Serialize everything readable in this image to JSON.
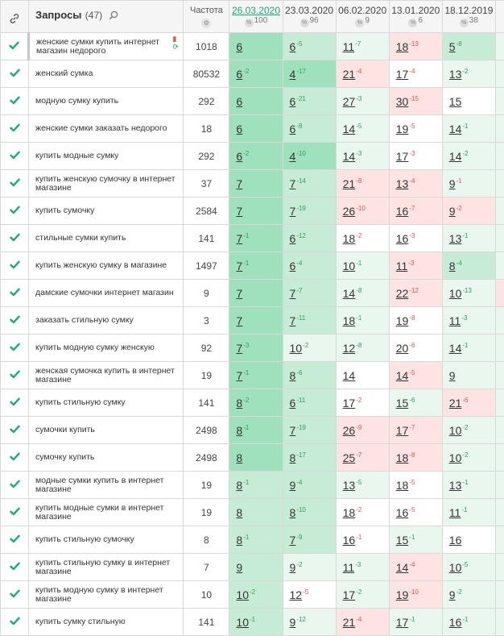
{
  "header": {
    "query_title": "Запросы",
    "query_count": "(47)",
    "freq_label": "Частота",
    "dates": [
      {
        "label": "26.03.2020",
        "visibility": "100",
        "active": true
      },
      {
        "label": "23.03.2020",
        "visibility": "96",
        "active": false
      },
      {
        "label": "06.02.2020",
        "visibility": "9",
        "active": false
      },
      {
        "label": "13.01.2020",
        "visibility": "6",
        "active": false
      },
      {
        "label": "18.12.2019",
        "visibility": "38",
        "active": false
      }
    ]
  },
  "colors": {
    "check": "#19a974",
    "top_green": "#9fe0bd",
    "mid_green": "#c6ecd5",
    "light_green": "#e9f7ee",
    "red_bg": "#fde3e1"
  },
  "icons": {
    "link": "link-icon",
    "search": "search-icon",
    "check": "check-icon",
    "trash": "trash-icon",
    "refresh": "refresh-icon"
  },
  "rows": [
    {
      "query": "женские сумки купить интернет магазин недорого",
      "freq": "1018",
      "marked": true,
      "actions": true,
      "edge": "g",
      "cells": [
        {
          "v": "6",
          "d": "",
          "bg": "g3"
        },
        {
          "v": "6",
          "d": "-5",
          "s": "up",
          "bg": "g2"
        },
        {
          "v": "11",
          "d": "-7",
          "s": "up",
          "bg": "g1"
        },
        {
          "v": "18",
          "d": "-13",
          "s": "dn",
          "bg": "r1"
        },
        {
          "v": "5",
          "d": "-8",
          "s": "up",
          "bg": "g2"
        }
      ]
    },
    {
      "query": "женский сумка",
      "freq": "80532",
      "edge": "g",
      "cells": [
        {
          "v": "6",
          "d": "-2",
          "s": "up",
          "bg": "g3"
        },
        {
          "v": "4",
          "d": "-17",
          "s": "up",
          "bg": "g3"
        },
        {
          "v": "21",
          "d": "-4",
          "s": "dn",
          "bg": "r1"
        },
        {
          "v": "17",
          "d": "-4",
          "s": "dn",
          "bg": "w"
        },
        {
          "v": "13",
          "d": "-2",
          "s": "up",
          "bg": "g1"
        }
      ]
    },
    {
      "query": "модную сумку купить",
      "freq": "292",
      "edge": "g",
      "cells": [
        {
          "v": "6",
          "d": "",
          "bg": "g3"
        },
        {
          "v": "6",
          "d": "-21",
          "s": "up",
          "bg": "g2"
        },
        {
          "v": "27",
          "d": "-3",
          "s": "up",
          "bg": "g1"
        },
        {
          "v": "30",
          "d": "-15",
          "s": "dn",
          "bg": "r1"
        },
        {
          "v": "15",
          "d": "",
          "bg": "w"
        }
      ]
    },
    {
      "query": "женские сумки заказать недорого",
      "freq": "18",
      "edge": "g",
      "cells": [
        {
          "v": "6",
          "d": "",
          "bg": "g3"
        },
        {
          "v": "6",
          "d": "-8",
          "s": "up",
          "bg": "g2"
        },
        {
          "v": "14",
          "d": "-5",
          "s": "up",
          "bg": "g1"
        },
        {
          "v": "19",
          "d": "-5",
          "s": "dn",
          "bg": "w"
        },
        {
          "v": "14",
          "d": "-1",
          "s": "up",
          "bg": "g1"
        }
      ]
    },
    {
      "query": "купить модные сумку",
      "freq": "292",
      "edge": "g",
      "cells": [
        {
          "v": "6",
          "d": "-2",
          "s": "up",
          "bg": "g3"
        },
        {
          "v": "4",
          "d": "-10",
          "s": "up",
          "bg": "g3"
        },
        {
          "v": "14",
          "d": "-3",
          "s": "up",
          "bg": "g1"
        },
        {
          "v": "17",
          "d": "-3",
          "s": "dn",
          "bg": "w"
        },
        {
          "v": "14",
          "d": "-2",
          "s": "up",
          "bg": "g1"
        }
      ]
    },
    {
      "query": "купить женскую сумочку в интернет магазине",
      "freq": "37",
      "edge": "g",
      "cells": [
        {
          "v": "7",
          "d": "",
          "bg": "g3"
        },
        {
          "v": "7",
          "d": "-14",
          "s": "up",
          "bg": "g2"
        },
        {
          "v": "21",
          "d": "-8",
          "s": "dn",
          "bg": "r1"
        },
        {
          "v": "13",
          "d": "-4",
          "s": "dn",
          "bg": "r1"
        },
        {
          "v": "9",
          "d": "-1",
          "s": "dn",
          "bg": "g1"
        }
      ]
    },
    {
      "query": "купить сумочку",
      "freq": "2584",
      "edge": "g",
      "cells": [
        {
          "v": "7",
          "d": "",
          "bg": "g3"
        },
        {
          "v": "7",
          "d": "-19",
          "s": "up",
          "bg": "g2"
        },
        {
          "v": "26",
          "d": "-10",
          "s": "dn",
          "bg": "r1"
        },
        {
          "v": "16",
          "d": "-7",
          "s": "dn",
          "bg": "r1"
        },
        {
          "v": "9",
          "d": "-2",
          "s": "dn",
          "bg": "r1"
        }
      ]
    },
    {
      "query": "стильные сумки купить",
      "freq": "141",
      "edge": "g",
      "cells": [
        {
          "v": "7",
          "d": "-1",
          "s": "up",
          "bg": "g3"
        },
        {
          "v": "6",
          "d": "-12",
          "s": "up",
          "bg": "g2"
        },
        {
          "v": "18",
          "d": "-2",
          "s": "dn",
          "bg": "w"
        },
        {
          "v": "16",
          "d": "-3",
          "s": "dn",
          "bg": "w"
        },
        {
          "v": "13",
          "d": "-1",
          "s": "up",
          "bg": "g1"
        }
      ]
    },
    {
      "query": "купить женскую сумку в магазине",
      "freq": "1497",
      "edge": "g",
      "cells": [
        {
          "v": "7",
          "d": "-1",
          "s": "up",
          "bg": "g3"
        },
        {
          "v": "6",
          "d": "-4",
          "s": "up",
          "bg": "g2"
        },
        {
          "v": "10",
          "d": "-1",
          "s": "up",
          "bg": "g1"
        },
        {
          "v": "11",
          "d": "-3",
          "s": "dn",
          "bg": "r1"
        },
        {
          "v": "8",
          "d": "-4",
          "s": "up",
          "bg": "g2"
        }
      ]
    },
    {
      "query": "дамские сумочки интернет магазин",
      "freq": "9",
      "edge": "r",
      "cells": [
        {
          "v": "7",
          "d": "",
          "bg": "g3"
        },
        {
          "v": "7",
          "d": "-7",
          "s": "up",
          "bg": "g2"
        },
        {
          "v": "14",
          "d": "-8",
          "s": "up",
          "bg": "g1"
        },
        {
          "v": "22",
          "d": "-12",
          "s": "dn",
          "bg": "r1"
        },
        {
          "v": "10",
          "d": "-13",
          "s": "up",
          "bg": "g1"
        }
      ]
    },
    {
      "query": "заказать стильную сумку",
      "freq": "3",
      "edge": "g",
      "cells": [
        {
          "v": "7",
          "d": "",
          "bg": "g3"
        },
        {
          "v": "7",
          "d": "-11",
          "s": "up",
          "bg": "g2"
        },
        {
          "v": "18",
          "d": "-1",
          "s": "up",
          "bg": "g1"
        },
        {
          "v": "19",
          "d": "-8",
          "s": "dn",
          "bg": "w"
        },
        {
          "v": "11",
          "d": "-3",
          "s": "up",
          "bg": "g1"
        }
      ]
    },
    {
      "query": "купить модную сумку женскую",
      "freq": "92",
      "edge": "g",
      "cells": [
        {
          "v": "7",
          "d": "-3",
          "s": "up",
          "bg": "g3"
        },
        {
          "v": "10",
          "d": "-2",
          "s": "up",
          "bg": "g1"
        },
        {
          "v": "12",
          "d": "-8",
          "s": "up",
          "bg": "g1"
        },
        {
          "v": "20",
          "d": "-6",
          "s": "dn",
          "bg": "w"
        },
        {
          "v": "14",
          "d": "-1",
          "s": "up",
          "bg": "g1"
        }
      ]
    },
    {
      "query": "женская сумочка купить в интернет магазине",
      "freq": "19",
      "edge": "g",
      "cells": [
        {
          "v": "7",
          "d": "-1",
          "s": "up",
          "bg": "g3"
        },
        {
          "v": "8",
          "d": "-6",
          "s": "up",
          "bg": "g2"
        },
        {
          "v": "14",
          "d": "",
          "bg": "w"
        },
        {
          "v": "14",
          "d": "-5",
          "s": "dn",
          "bg": "r1"
        },
        {
          "v": "9",
          "d": "",
          "bg": "g1"
        }
      ]
    },
    {
      "query": "купить стильную сумку",
      "freq": "141",
      "edge": "g",
      "cells": [
        {
          "v": "8",
          "d": "-2",
          "s": "up",
          "bg": "g3"
        },
        {
          "v": "6",
          "d": "-11",
          "s": "up",
          "bg": "g2"
        },
        {
          "v": "17",
          "d": "-2",
          "s": "dn",
          "bg": "w"
        },
        {
          "v": "15",
          "d": "-6",
          "s": "up",
          "bg": "g1"
        },
        {
          "v": "21",
          "d": "-6",
          "s": "dn",
          "bg": "r1"
        }
      ]
    },
    {
      "query": "сумочки купить",
      "freq": "2498",
      "edge": "g",
      "cells": [
        {
          "v": "8",
          "d": "-1",
          "s": "up",
          "bg": "g3"
        },
        {
          "v": "7",
          "d": "-19",
          "s": "up",
          "bg": "g2"
        },
        {
          "v": "26",
          "d": "-9",
          "s": "dn",
          "bg": "r1"
        },
        {
          "v": "17",
          "d": "-7",
          "s": "dn",
          "bg": "r1"
        },
        {
          "v": "10",
          "d": "-2",
          "s": "up",
          "bg": "g1"
        }
      ]
    },
    {
      "query": "сумочку купить",
      "freq": "2498",
      "edge": "g",
      "cells": [
        {
          "v": "8",
          "d": "",
          "bg": "g3"
        },
        {
          "v": "8",
          "d": "-17",
          "s": "up",
          "bg": "g2"
        },
        {
          "v": "25",
          "d": "-7",
          "s": "dn",
          "bg": "r1"
        },
        {
          "v": "18",
          "d": "-8",
          "s": "dn",
          "bg": "r1"
        },
        {
          "v": "10",
          "d": "-2",
          "s": "up",
          "bg": "g1"
        }
      ]
    },
    {
      "query": "модные сумки купить в интернет магазине",
      "freq": "19",
      "edge": "g",
      "cells": [
        {
          "v": "8",
          "d": "-1",
          "s": "up",
          "bg": "g2"
        },
        {
          "v": "9",
          "d": "-4",
          "s": "up",
          "bg": "g2"
        },
        {
          "v": "13",
          "d": "-5",
          "s": "up",
          "bg": "g1"
        },
        {
          "v": "18",
          "d": "-5",
          "s": "dn",
          "bg": "w"
        },
        {
          "v": "13",
          "d": "-1",
          "s": "up",
          "bg": "g1"
        }
      ]
    },
    {
      "query": "купить модные сумки в интернет магазине",
      "freq": "19",
      "edge": "g",
      "cells": [
        {
          "v": "8",
          "d": "",
          "bg": "g2"
        },
        {
          "v": "8",
          "d": "-10",
          "s": "up",
          "bg": "g2"
        },
        {
          "v": "18",
          "d": "-2",
          "s": "dn",
          "bg": "w"
        },
        {
          "v": "16",
          "d": "-5",
          "s": "dn",
          "bg": "w"
        },
        {
          "v": "11",
          "d": "-1",
          "s": "up",
          "bg": "g1"
        }
      ]
    },
    {
      "query": "купить стильную сумочку",
      "freq": "8",
      "edge": "g",
      "cells": [
        {
          "v": "8",
          "d": "-1",
          "s": "up",
          "bg": "g2"
        },
        {
          "v": "7",
          "d": "-9",
          "s": "up",
          "bg": "g2"
        },
        {
          "v": "16",
          "d": "-1",
          "s": "dn",
          "bg": "w"
        },
        {
          "v": "15",
          "d": "-1",
          "s": "up",
          "bg": "g1"
        },
        {
          "v": "16",
          "d": "",
          "bg": "w"
        }
      ]
    },
    {
      "query": "купить стильную сумку в интернет магазине",
      "freq": "7",
      "edge": "g",
      "cells": [
        {
          "v": "9",
          "d": "",
          "bg": "g2"
        },
        {
          "v": "9",
          "d": "-2",
          "s": "up",
          "bg": "g1"
        },
        {
          "v": "11",
          "d": "-3",
          "s": "up",
          "bg": "g1"
        },
        {
          "v": "14",
          "d": "-4",
          "s": "dn",
          "bg": "r1"
        },
        {
          "v": "10",
          "d": "-5",
          "s": "up",
          "bg": "g1"
        }
      ]
    },
    {
      "query": "купить модную сумку в интернет магазине",
      "freq": "10",
      "edge": "g",
      "cells": [
        {
          "v": "10",
          "d": "-2",
          "s": "up",
          "bg": "g2"
        },
        {
          "v": "12",
          "d": "-5",
          "s": "dn",
          "bg": "w"
        },
        {
          "v": "17",
          "d": "-2",
          "s": "up",
          "bg": "g1"
        },
        {
          "v": "19",
          "d": "-10",
          "s": "dn",
          "bg": "r1"
        },
        {
          "v": "9",
          "d": "-2",
          "s": "up",
          "bg": "g1"
        }
      ]
    },
    {
      "query": "купить сумку стильную",
      "freq": "141",
      "edge": "g",
      "cells": [
        {
          "v": "10",
          "d": "-1",
          "s": "up",
          "bg": "g2"
        },
        {
          "v": "9",
          "d": "-12",
          "s": "up",
          "bg": "g1"
        },
        {
          "v": "21",
          "d": "-4",
          "s": "dn",
          "bg": "r1"
        },
        {
          "v": "17",
          "d": "-1",
          "s": "up",
          "bg": "g1"
        },
        {
          "v": "16",
          "d": "-1",
          "s": "up",
          "bg": "g1"
        }
      ]
    }
  ]
}
